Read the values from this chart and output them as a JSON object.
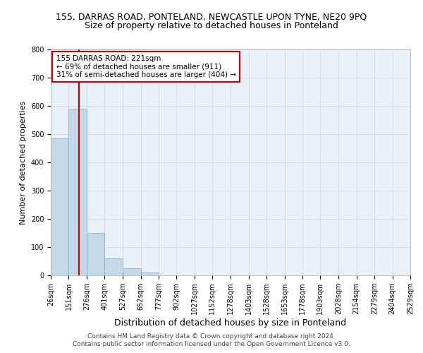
{
  "title1": "155, DARRAS ROAD, PONTELAND, NEWCASTLE UPON TYNE, NE20 9PQ",
  "title2": "Size of property relative to detached houses in Ponteland",
  "xlabel": "Distribution of detached houses by size in Ponteland",
  "ylabel": "Number of detached properties",
  "footnote1": "Contains HM Land Registry data © Crown copyright and database right 2024.",
  "footnote2": "Contains public sector information licensed under the Open Government Licence v3.0.",
  "bin_edges": [
    26,
    151,
    276,
    401,
    527,
    652,
    777,
    902,
    1027,
    1152,
    1278,
    1403,
    1528,
    1653,
    1778,
    1903,
    2028,
    2154,
    2279,
    2404,
    2529
  ],
  "bar_heights": [
    485,
    590,
    150,
    60,
    25,
    10,
    0,
    0,
    0,
    0,
    0,
    0,
    0,
    0,
    0,
    0,
    0,
    0,
    0,
    0
  ],
  "bar_color": "#c5d8e8",
  "bar_edge_color": "#7aaac8",
  "vline_x": 221,
  "vline_color": "#cc0000",
  "ylim": [
    0,
    800
  ],
  "yticks": [
    0,
    100,
    200,
    300,
    400,
    500,
    600,
    700,
    800
  ],
  "annotation_box_text": "155 DARRAS ROAD: 221sqm\n← 69% of detached houses are smaller (911)\n31% of semi-detached houses are larger (404) →",
  "annotation_box_color": "#cc0000",
  "grid_color": "#d0d8e8",
  "bg_color": "#eaf0f8",
  "title1_fontsize": 9,
  "title2_fontsize": 9,
  "xlabel_fontsize": 9,
  "ylabel_fontsize": 8,
  "tick_fontsize": 7,
  "ann_fontsize": 7.5,
  "footnote_fontsize": 6.5
}
